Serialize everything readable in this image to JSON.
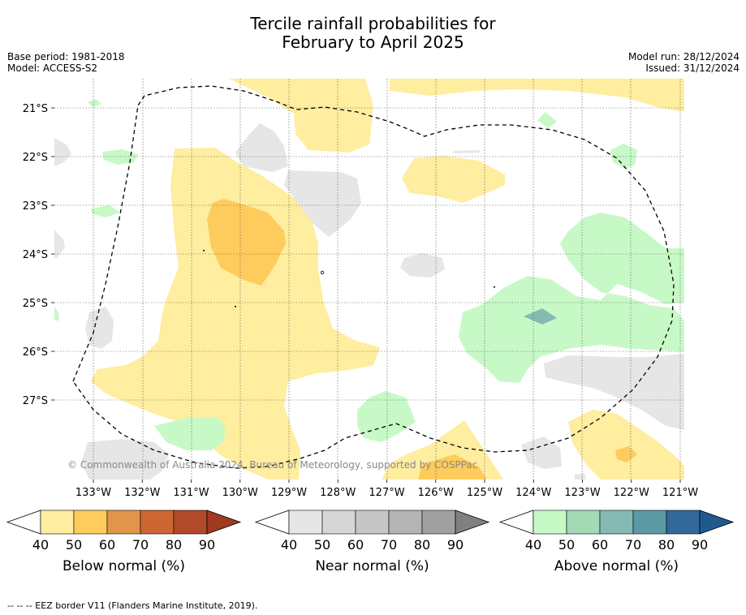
{
  "title_line1": "Tercile rainfall probabilities for",
  "title_line2": "February to April 2025",
  "meta_left": {
    "base_period": "Base period: 1981-2018",
    "model": "Model: ACCESS-S2"
  },
  "meta_right": {
    "model_run": "Model run: 28/12/2024",
    "issued": "Issued: 31/12/2024"
  },
  "latitudes": [
    "21°S",
    "22°S",
    "23°S",
    "24°S",
    "25°S",
    "26°S",
    "27°S"
  ],
  "longitudes": [
    "133°W",
    "132°W",
    "131°W",
    "130°W",
    "129°W",
    "128°W",
    "127°W",
    "126°W",
    "125°W",
    "124°W",
    "123°W",
    "122°W",
    "121°W"
  ],
  "copyright": "© Commonwealth of Australia 2024, Bureau of Meteorology, supported by COSPPac",
  "colorbars": [
    {
      "name": "below",
      "title": "Below normal (%)",
      "ticks": [
        "40",
        "50",
        "60",
        "70",
        "80",
        "90"
      ],
      "colors": [
        "#ffffff",
        "#ffeda0",
        "#fecc5c",
        "#e0954a",
        "#cc6633",
        "#b04a28",
        "#a03a1f"
      ]
    },
    {
      "name": "near",
      "title": "Near normal (%)",
      "ticks": [
        "40",
        "50",
        "60",
        "70",
        "80",
        "90"
      ],
      "colors": [
        "#ffffff",
        "#e6e6e6",
        "#d6d6d6",
        "#c6c6c6",
        "#b4b4b4",
        "#a0a0a0",
        "#808080"
      ]
    },
    {
      "name": "above",
      "title": "Above normal (%)",
      "ticks": [
        "40",
        "50",
        "60",
        "70",
        "80",
        "90"
      ],
      "colors": [
        "#ffffff",
        "#c7f9c7",
        "#a3d9b5",
        "#84bab3",
        "#5b9aa5",
        "#33689b",
        "#1e5a8e"
      ]
    }
  ],
  "footnote": "--  --  -- EEZ border V11 (Flanders Marine Institute, 2019)."
}
